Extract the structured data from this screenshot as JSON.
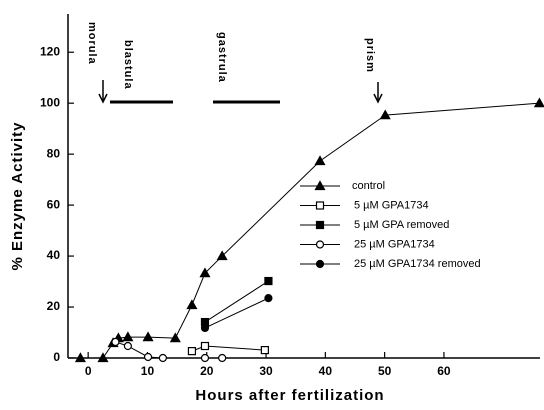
{
  "chart_data": {
    "type": "line",
    "x_label": "Hours after fertilization",
    "y_label": "% Enzyme Activity",
    "xlim": [
      -3.4,
      76.2
    ],
    "ylim": [
      0,
      135
    ],
    "xticks": [
      0,
      10,
      20,
      30,
      40,
      50,
      60
    ],
    "yticks": [
      0,
      20,
      40,
      60,
      80,
      100,
      120
    ],
    "annotations": [
      "morula",
      "blastula",
      "gastrula",
      "prism"
    ],
    "series": [
      {
        "name": "control",
        "color": "#000000",
        "marker": "triangle",
        "filled": true,
        "x": [
          -1.3,
          2.5,
          4.2,
          5.1,
          6.7,
          10.1,
          14.7,
          17.5,
          19.7,
          22.6,
          39.1,
          50.1,
          76.1
        ],
        "values": [
          0,
          0,
          5.9,
          7.8,
          8.2,
          8.2,
          7.8,
          20.8,
          33.3,
          40,
          77.3,
          95.3,
          100
        ]
      },
      {
        "name": "5 µM GPA1734",
        "color": "#000000",
        "marker": "square",
        "filled": false,
        "x": [
          17.5,
          19.7,
          29.8
        ],
        "values": [
          2.7,
          4.7,
          3.1
        ]
      },
      {
        "name": "5 µM GPA removed",
        "color": "#000000",
        "marker": "square",
        "filled": true,
        "x": [
          19.7,
          30.4
        ],
        "values": [
          14.1,
          30.2
        ]
      },
      {
        "name": "25 µM GPA1734",
        "color": "#000000",
        "marker": "circle",
        "filled": false,
        "x": [
          4.6,
          6.7,
          10.1,
          12.6,
          19.7,
          22.6
        ],
        "values": [
          6.3,
          4.7,
          0.4,
          0,
          0,
          0
        ]
      },
      {
        "name": "25 µM GPA1734 removed",
        "color": "#000000",
        "marker": "circle",
        "filled": true,
        "x": [
          19.7,
          30.4
        ],
        "values": [
          11.8,
          23.5
        ]
      }
    ]
  }
}
